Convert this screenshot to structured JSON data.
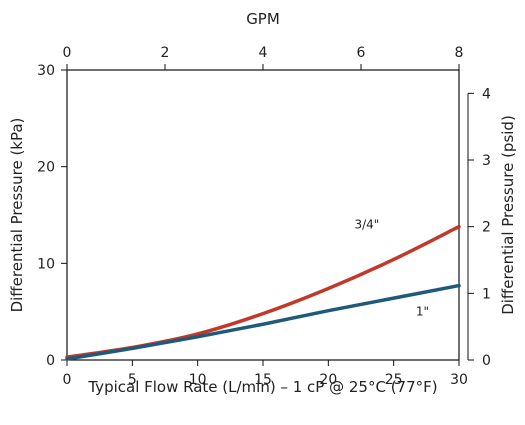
{
  "chart_data": {
    "type": "line",
    "xlabel": "Typical Flow Rate (L/min) – 1 cP @ 25°C (77°F)",
    "ylabel": "Differential Pressure (kPa)",
    "x2label": "GPM",
    "y2label": "Differential Pressure (psid)",
    "xlim": [
      0,
      30
    ],
    "ylim": [
      0,
      30
    ],
    "x2lim": [
      0,
      8
    ],
    "y2lim": [
      0,
      4.35
    ],
    "x_ticks": [
      "0",
      "5",
      "10",
      "15",
      "20",
      "25",
      "30"
    ],
    "x_tick_values": [
      0,
      5,
      10,
      15,
      20,
      25,
      30
    ],
    "y_ticks": [
      "0",
      "10",
      "20",
      "30"
    ],
    "y_tick_values": [
      0,
      10,
      20,
      30
    ],
    "x2_ticks": [
      "0",
      "2",
      "4",
      "6",
      "8"
    ],
    "x2_tick_values": [
      0,
      2,
      4,
      6,
      8
    ],
    "y2_ticks": [
      "0",
      "1",
      "2",
      "3",
      "4"
    ],
    "y2_tick_values": [
      0,
      1,
      2,
      3,
      4
    ],
    "grid": false,
    "series": [
      {
        "name": "3/4\"",
        "color": "#c0392b",
        "x": [
          0,
          5,
          10,
          15,
          20,
          25,
          30
        ],
        "y": [
          0.3,
          1.3,
          2.7,
          4.8,
          7.4,
          10.4,
          13.8
        ]
      },
      {
        "name": "1\"",
        "color": "#1f5a7a",
        "x": [
          0,
          5,
          10,
          15,
          20,
          25,
          30
        ],
        "y": [
          0.1,
          1.2,
          2.4,
          3.7,
          5.1,
          6.4,
          7.7
        ]
      }
    ]
  }
}
